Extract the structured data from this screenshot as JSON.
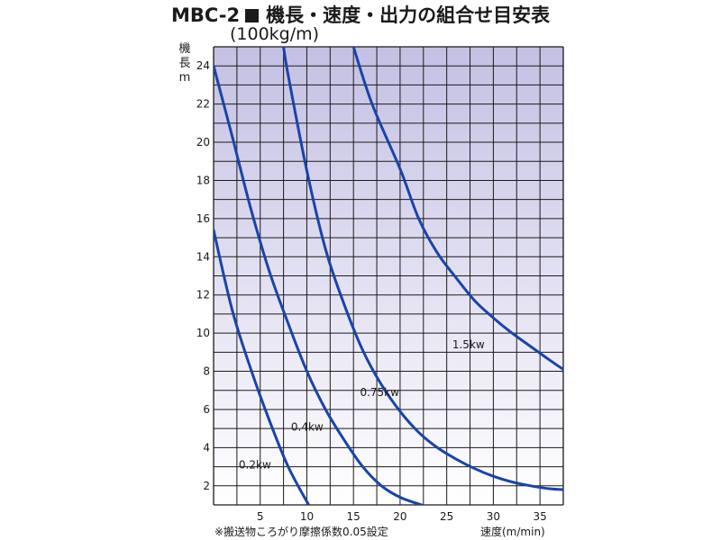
{
  "header": {
    "model": "MBC-2",
    "title": "機長・速度・出力の組合せ目安表",
    "subtitle": "(100kg/m)"
  },
  "axis": {
    "ylabel_chars": [
      "機",
      "長",
      "m"
    ],
    "xlabel": "速度(m/min)"
  },
  "footnote": "※搬送物ころがり摩擦係数0.05設定",
  "colors": {
    "curve": "#1a44a6",
    "grid": "#1a1a1a",
    "bg_top": "#c4c0e4",
    "bg_bottom": "#ffffff"
  },
  "chart_data": {
    "type": "line",
    "title": "機長・速度・出力の組合せ目安表",
    "xlabel": "速度(m/min)",
    "ylabel": "機長 m",
    "xlim": [
      0,
      37.5
    ],
    "ylim": [
      1,
      25
    ],
    "x_ticks": [
      5,
      10,
      15,
      20,
      25,
      30,
      35
    ],
    "y_ticks": [
      2,
      4,
      6,
      8,
      10,
      12,
      14,
      16,
      18,
      20,
      22,
      24
    ],
    "grid": true,
    "series": [
      {
        "name": "0.2kw",
        "x": [
          0,
          2,
          4,
          6,
          8,
          10.2
        ],
        "y": [
          15.4,
          11.2,
          8.1,
          5.4,
          3.0,
          1.0
        ]
      },
      {
        "name": "0.4kw",
        "x": [
          0,
          2,
          4,
          6,
          8,
          10,
          12,
          14,
          16,
          18,
          20,
          22.3
        ],
        "y": [
          24.0,
          20.3,
          16.5,
          13.2,
          10.5,
          8.0,
          6.0,
          4.4,
          3.0,
          2.0,
          1.4,
          1.0
        ]
      },
      {
        "name": "0.75kw",
        "x": [
          7.5,
          8,
          10,
          12,
          14,
          16,
          18,
          20,
          22,
          24,
          26,
          28,
          30,
          32,
          34,
          36,
          37.5
        ],
        "y": [
          25.0,
          23.5,
          18.5,
          14.4,
          11.5,
          9.1,
          7.3,
          5.9,
          4.8,
          4.0,
          3.4,
          2.9,
          2.5,
          2.2,
          2.0,
          1.85,
          1.8
        ]
      },
      {
        "name": "1.5kw",
        "x": [
          15,
          17,
          20,
          22,
          24,
          26,
          28,
          30,
          32,
          34,
          36,
          37.5
        ],
        "y": [
          25.0,
          22.0,
          18.6,
          16.0,
          14.2,
          12.9,
          11.7,
          10.8,
          10.0,
          9.3,
          8.6,
          8.1
        ]
      }
    ],
    "annotations": [
      {
        "text": "0.2kw",
        "x": 2.7,
        "y": 2.9
      },
      {
        "text": "0.4kw",
        "x": 8.3,
        "y": 4.9
      },
      {
        "text": "0.75kw",
        "x": 15.7,
        "y": 6.7
      },
      {
        "text": "1.5kw",
        "x": 25.6,
        "y": 9.2
      }
    ]
  }
}
